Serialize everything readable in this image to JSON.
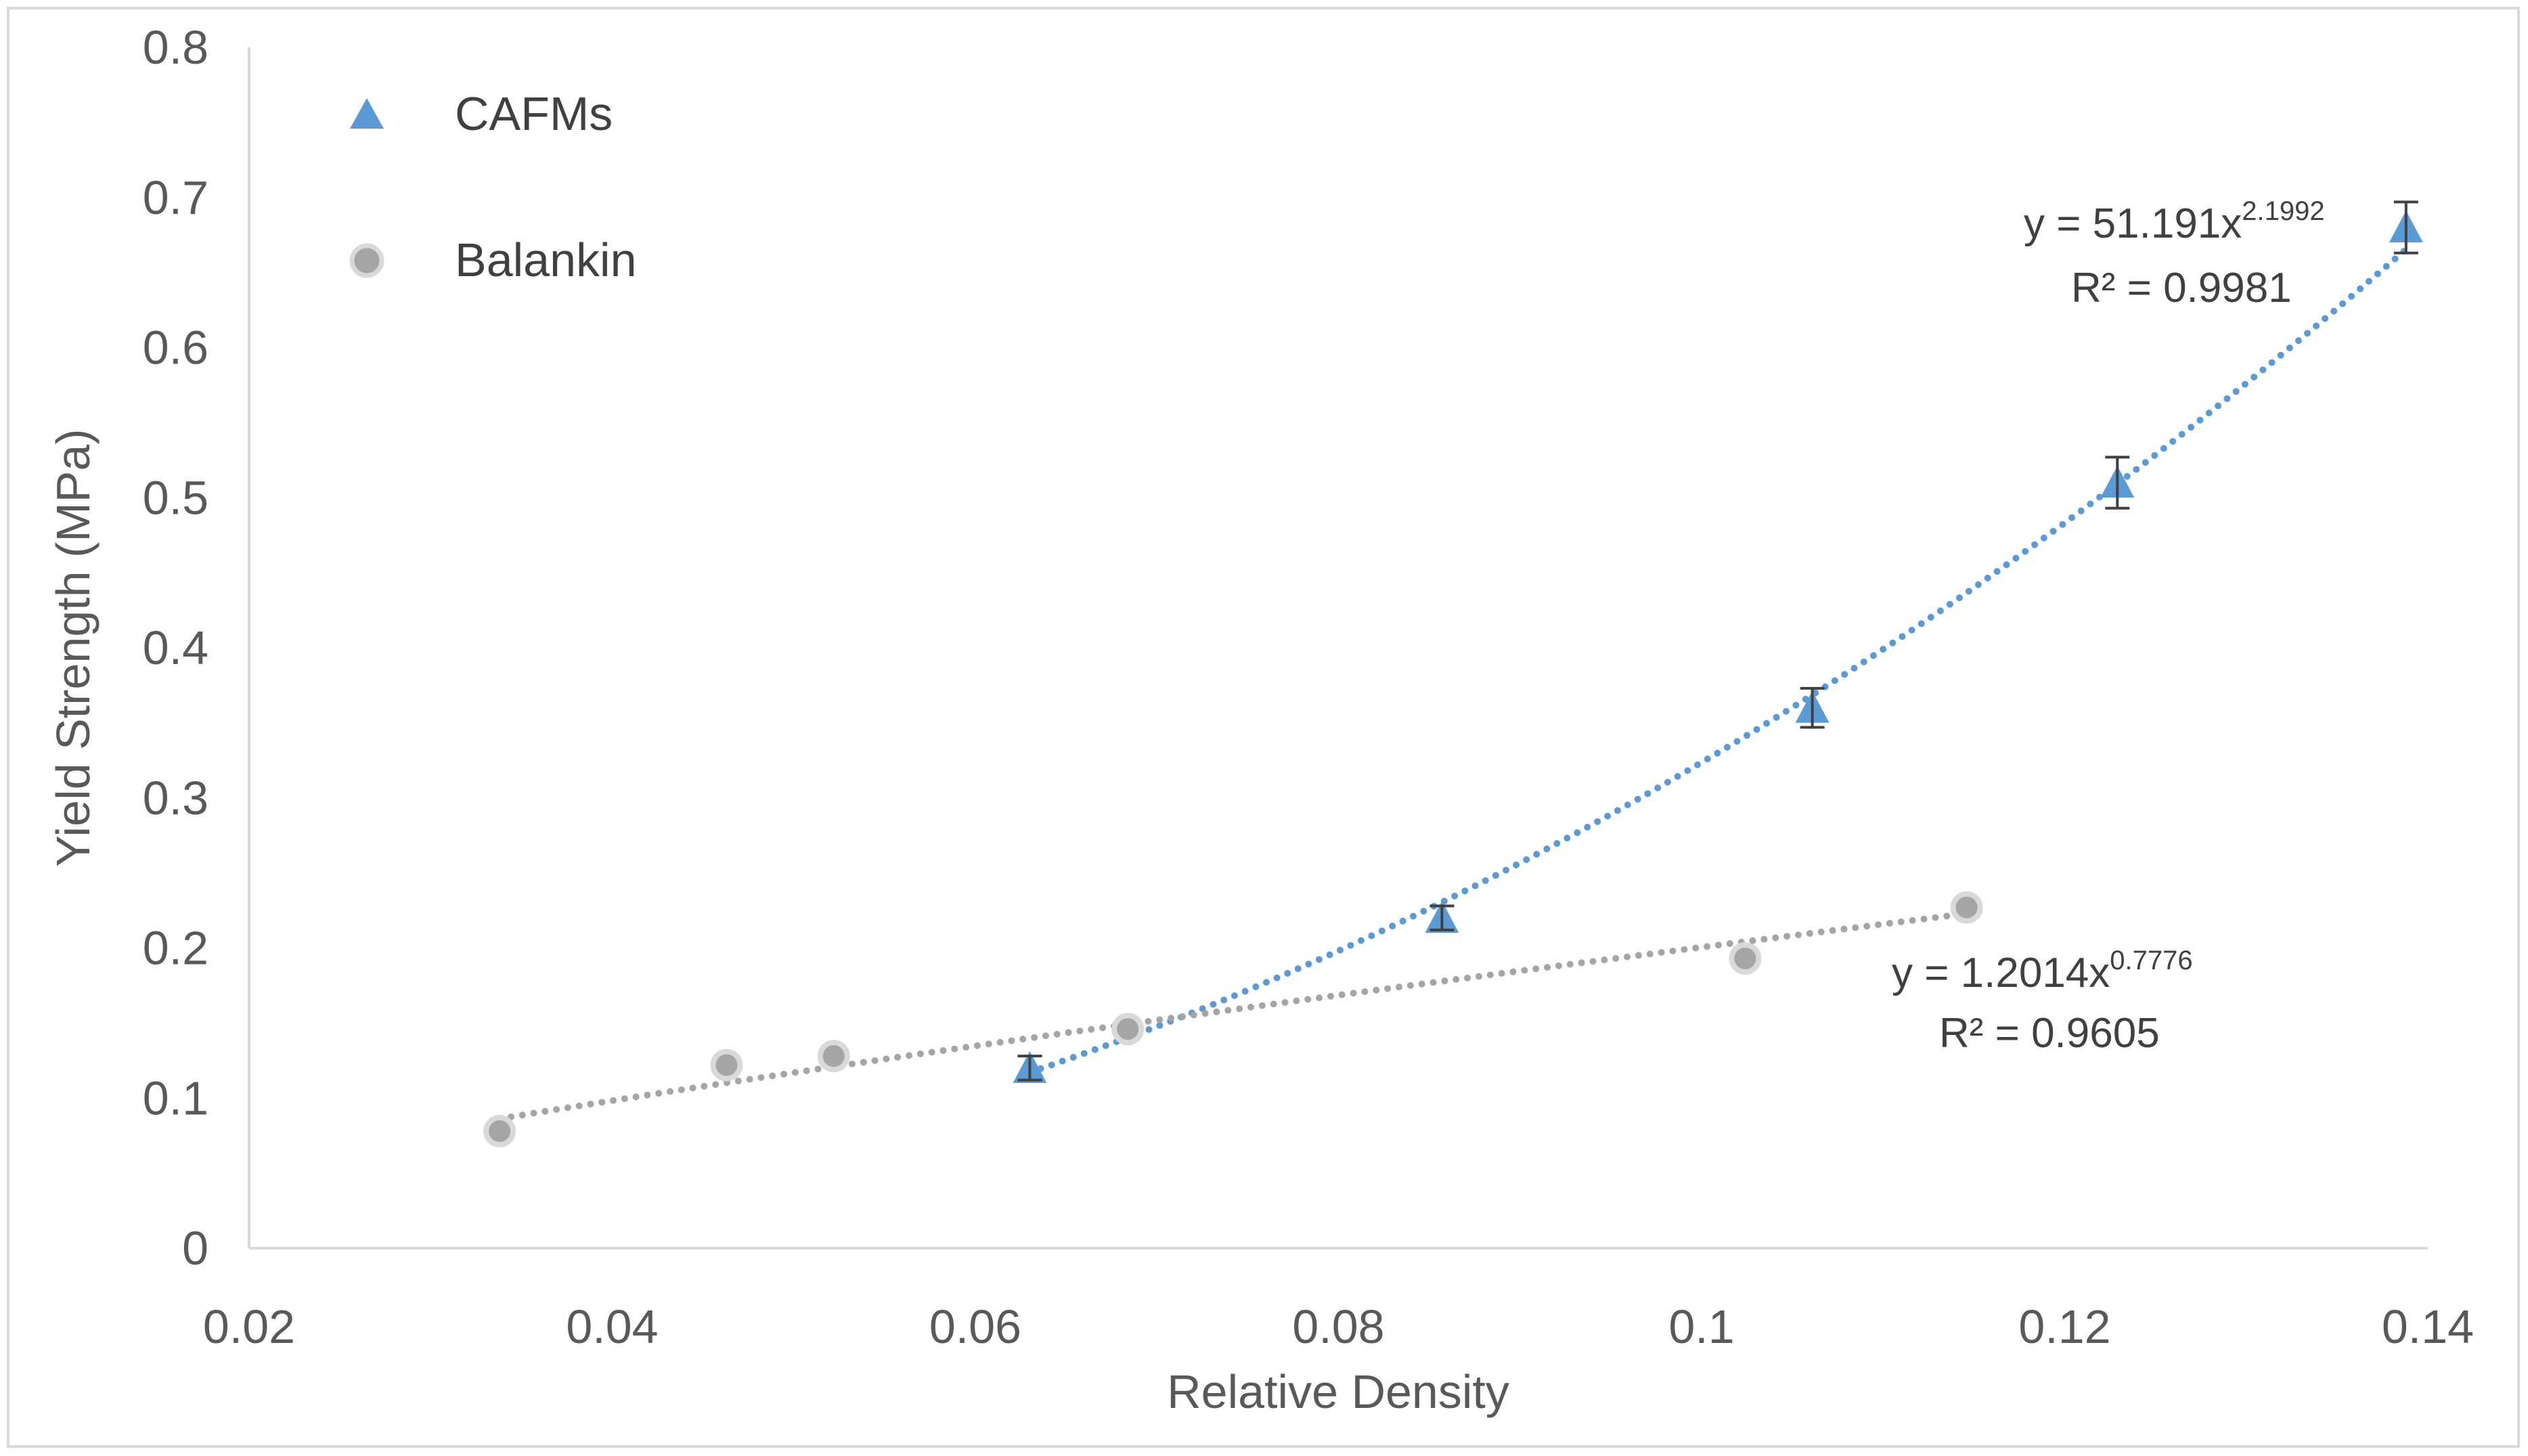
{
  "chart_data": {
    "type": "scatter",
    "xlabel": "Relative Density",
    "ylabel": "Yield Strength (MPa)",
    "xlim": [
      0.02,
      0.14
    ],
    "ylim": [
      0,
      0.8
    ],
    "xticks": [
      0.02,
      0.04,
      0.06,
      0.08,
      0.1,
      0.12,
      0.14
    ],
    "xtick_labels": [
      "0.02",
      "0.04",
      "0.06",
      "0.08",
      "0.1",
      "0.12",
      "0.14"
    ],
    "yticks": [
      0,
      0.1,
      0.2,
      0.3,
      0.4,
      0.5,
      0.6,
      0.7,
      0.8
    ],
    "ytick_labels": [
      "0",
      "0.1",
      "0.2",
      "0.3",
      "0.4",
      "0.5",
      "0.6",
      "0.7",
      "0.8"
    ],
    "grid": false,
    "legend_position": "top-left",
    "series": [
      {
        "name": "CAFMs",
        "marker": "triangle",
        "color": "#5b9bd5",
        "x": [
          0.063,
          0.0857,
          0.1061,
          0.1229,
          0.1388
        ],
        "y": [
          0.12,
          0.22,
          0.36,
          0.51,
          0.68
        ],
        "error": [
          0.008,
          0.008,
          0.013,
          0.017,
          0.017
        ],
        "trendline": {
          "type": "power",
          "coef": 51.191,
          "exponent": 2.1992,
          "equation_prefix": "y = 51.191x",
          "equation_exponent": "2.1992",
          "r2_label": "R² = 0.9981"
        }
      },
      {
        "name": "Balankin",
        "marker": "circle",
        "color": "#a5a5a5",
        "x": [
          0.0338,
          0.0463,
          0.0522,
          0.0684,
          0.1024,
          0.1146
        ],
        "y": [
          0.078,
          0.122,
          0.128,
          0.146,
          0.193,
          0.227
        ],
        "trendline": {
          "type": "power",
          "coef": 1.2014,
          "exponent": 0.7776,
          "equation_prefix": "y = 1.2014x",
          "equation_exponent": "0.7776",
          "r2_label": "R² = 0.9605"
        }
      }
    ]
  }
}
